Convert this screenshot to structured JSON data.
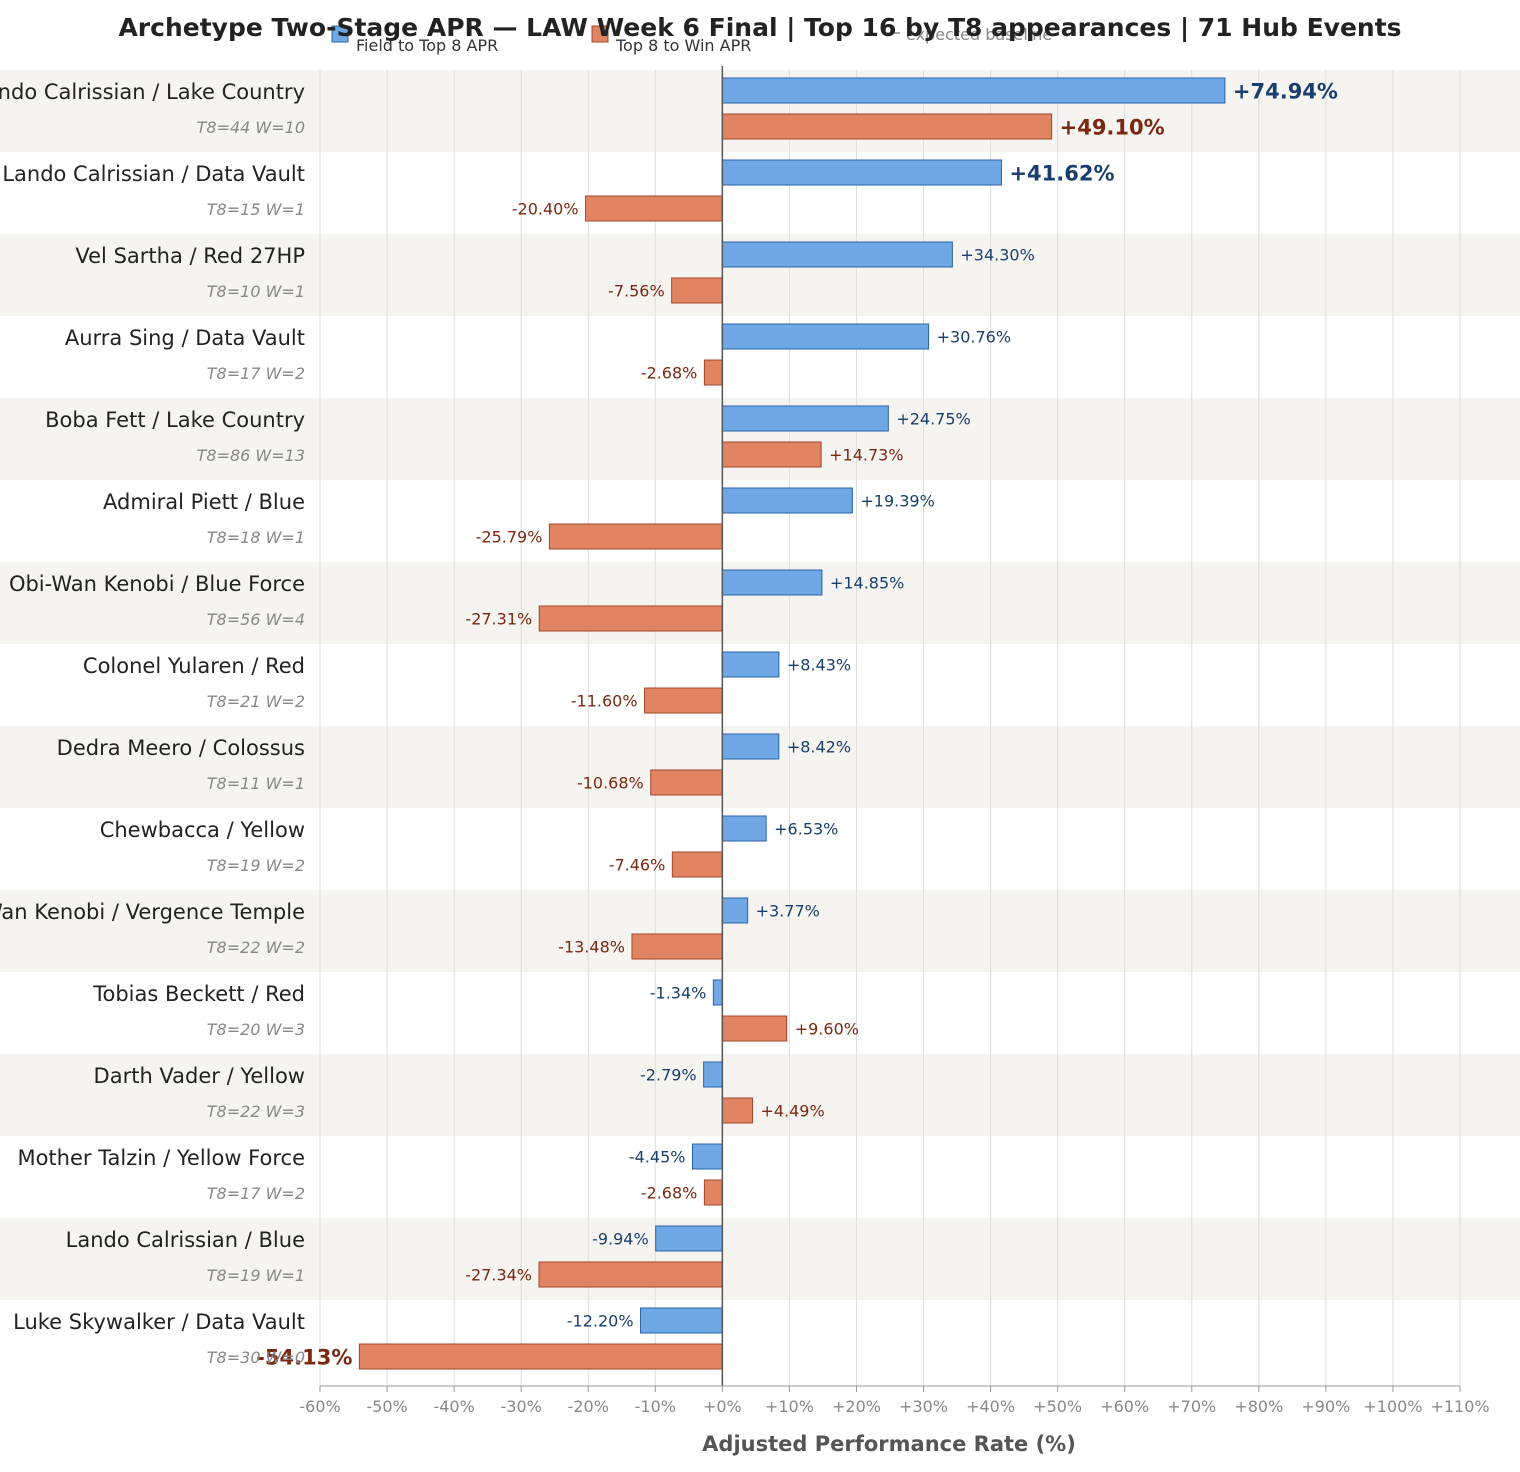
{
  "chart_data": {
    "type": "bar",
    "orientation": "horizontal",
    "title": "Archetype Two-Stage APR — LAW Week 6 Final  |  Top 16 by T8 appearances  |  71 Hub Events",
    "xlabel": "Adjusted Performance Rate (%)",
    "xlim": [
      -60,
      110
    ],
    "xticks": [
      "-60%",
      "-50%",
      "-40%",
      "-30%",
      "-20%",
      "-10%",
      "+0%",
      "+10%",
      "+20%",
      "+30%",
      "+40%",
      "+50%",
      "+60%",
      "+70%",
      "+80%",
      "+90%",
      "+100%",
      "+110%"
    ],
    "grid": "vertical",
    "legend_position": "top",
    "legend": [
      {
        "name": "Field to Top 8 APR",
        "color": "#6fa8e4"
      },
      {
        "name": "Top 8 to Win APR",
        "color": "#e08462"
      },
      {
        "name": "expected baseline",
        "color": "#555555"
      }
    ],
    "categories": [
      "Lando Calrissian / Lake Country",
      "Lando Calrissian / Data Vault",
      "Vel Sartha / Red 27HP",
      "Aurra Sing / Data Vault",
      "Boba Fett / Lake Country",
      "Admiral Piett / Blue",
      "Obi-Wan Kenobi / Blue Force",
      "Colonel Yularen / Red",
      "Dedra Meero / Colossus",
      "Chewbacca / Yellow",
      "Obi-Wan Kenobi / Vergence Temple",
      "Tobias Beckett / Red",
      "Darth Vader / Yellow",
      "Mother Talzin / Yellow Force",
      "Lando Calrissian / Blue",
      "Luke Skywalker / Data Vault"
    ],
    "meta": [
      "T8=44  W=10",
      "T8=15  W=1",
      "T8=10  W=1",
      "T8=17  W=2",
      "T8=86  W=13",
      "T8=18  W=1",
      "T8=56  W=4",
      "T8=21  W=2",
      "T8=11  W=1",
      "T8=19  W=2",
      "T8=22  W=2",
      "T8=20  W=3",
      "T8=22  W=3",
      "T8=17  W=2",
      "T8=19  W=1",
      "T8=30  W=0"
    ],
    "series": [
      {
        "name": "Field to Top 8 APR",
        "values": [
          74.94,
          41.62,
          34.3,
          30.76,
          24.75,
          19.39,
          14.85,
          8.43,
          8.42,
          6.53,
          3.77,
          -1.34,
          -2.79,
          -4.45,
          -9.94,
          -12.2
        ],
        "labels": [
          "+74.94%",
          "+41.62%",
          "+34.30%",
          "+30.76%",
          "+24.75%",
          "+19.39%",
          "+14.85%",
          "+8.43%",
          "+8.42%",
          "+6.53%",
          "+3.77%",
          "-1.34%",
          "-2.79%",
          "-4.45%",
          "-9.94%",
          "-12.20%"
        ]
      },
      {
        "name": "Top 8 to Win APR",
        "values": [
          49.1,
          -20.4,
          -7.56,
          -2.68,
          14.73,
          -25.79,
          -27.31,
          -11.6,
          -10.68,
          -7.46,
          -13.48,
          9.6,
          4.49,
          -2.68,
          -27.34,
          -54.13
        ],
        "labels": [
          "+49.10%",
          "-20.40%",
          "-7.56%",
          "-2.68%",
          "+14.73%",
          "-25.79%",
          "-27.31%",
          "-11.60%",
          "-10.68%",
          "-7.46%",
          "-13.48%",
          "+9.60%",
          "+4.49%",
          "-2.68%",
          "-27.34%",
          "-54.13%"
        ]
      }
    ],
    "highlight_labels": [
      [
        0,
        0
      ],
      [
        0,
        1
      ],
      [
        1,
        0
      ],
      [
        1,
        15
      ]
    ],
    "colors": {
      "field_fill": "#6fa8e4",
      "field_stroke": "#2a62a8",
      "field_text": "#1a3f6e",
      "win_fill": "#e08462",
      "win_stroke": "#a4452a",
      "win_text": "#7a2810",
      "row_band": "#f5f4f1",
      "grid": "#dddddd",
      "zero_line": "#555555"
    }
  }
}
